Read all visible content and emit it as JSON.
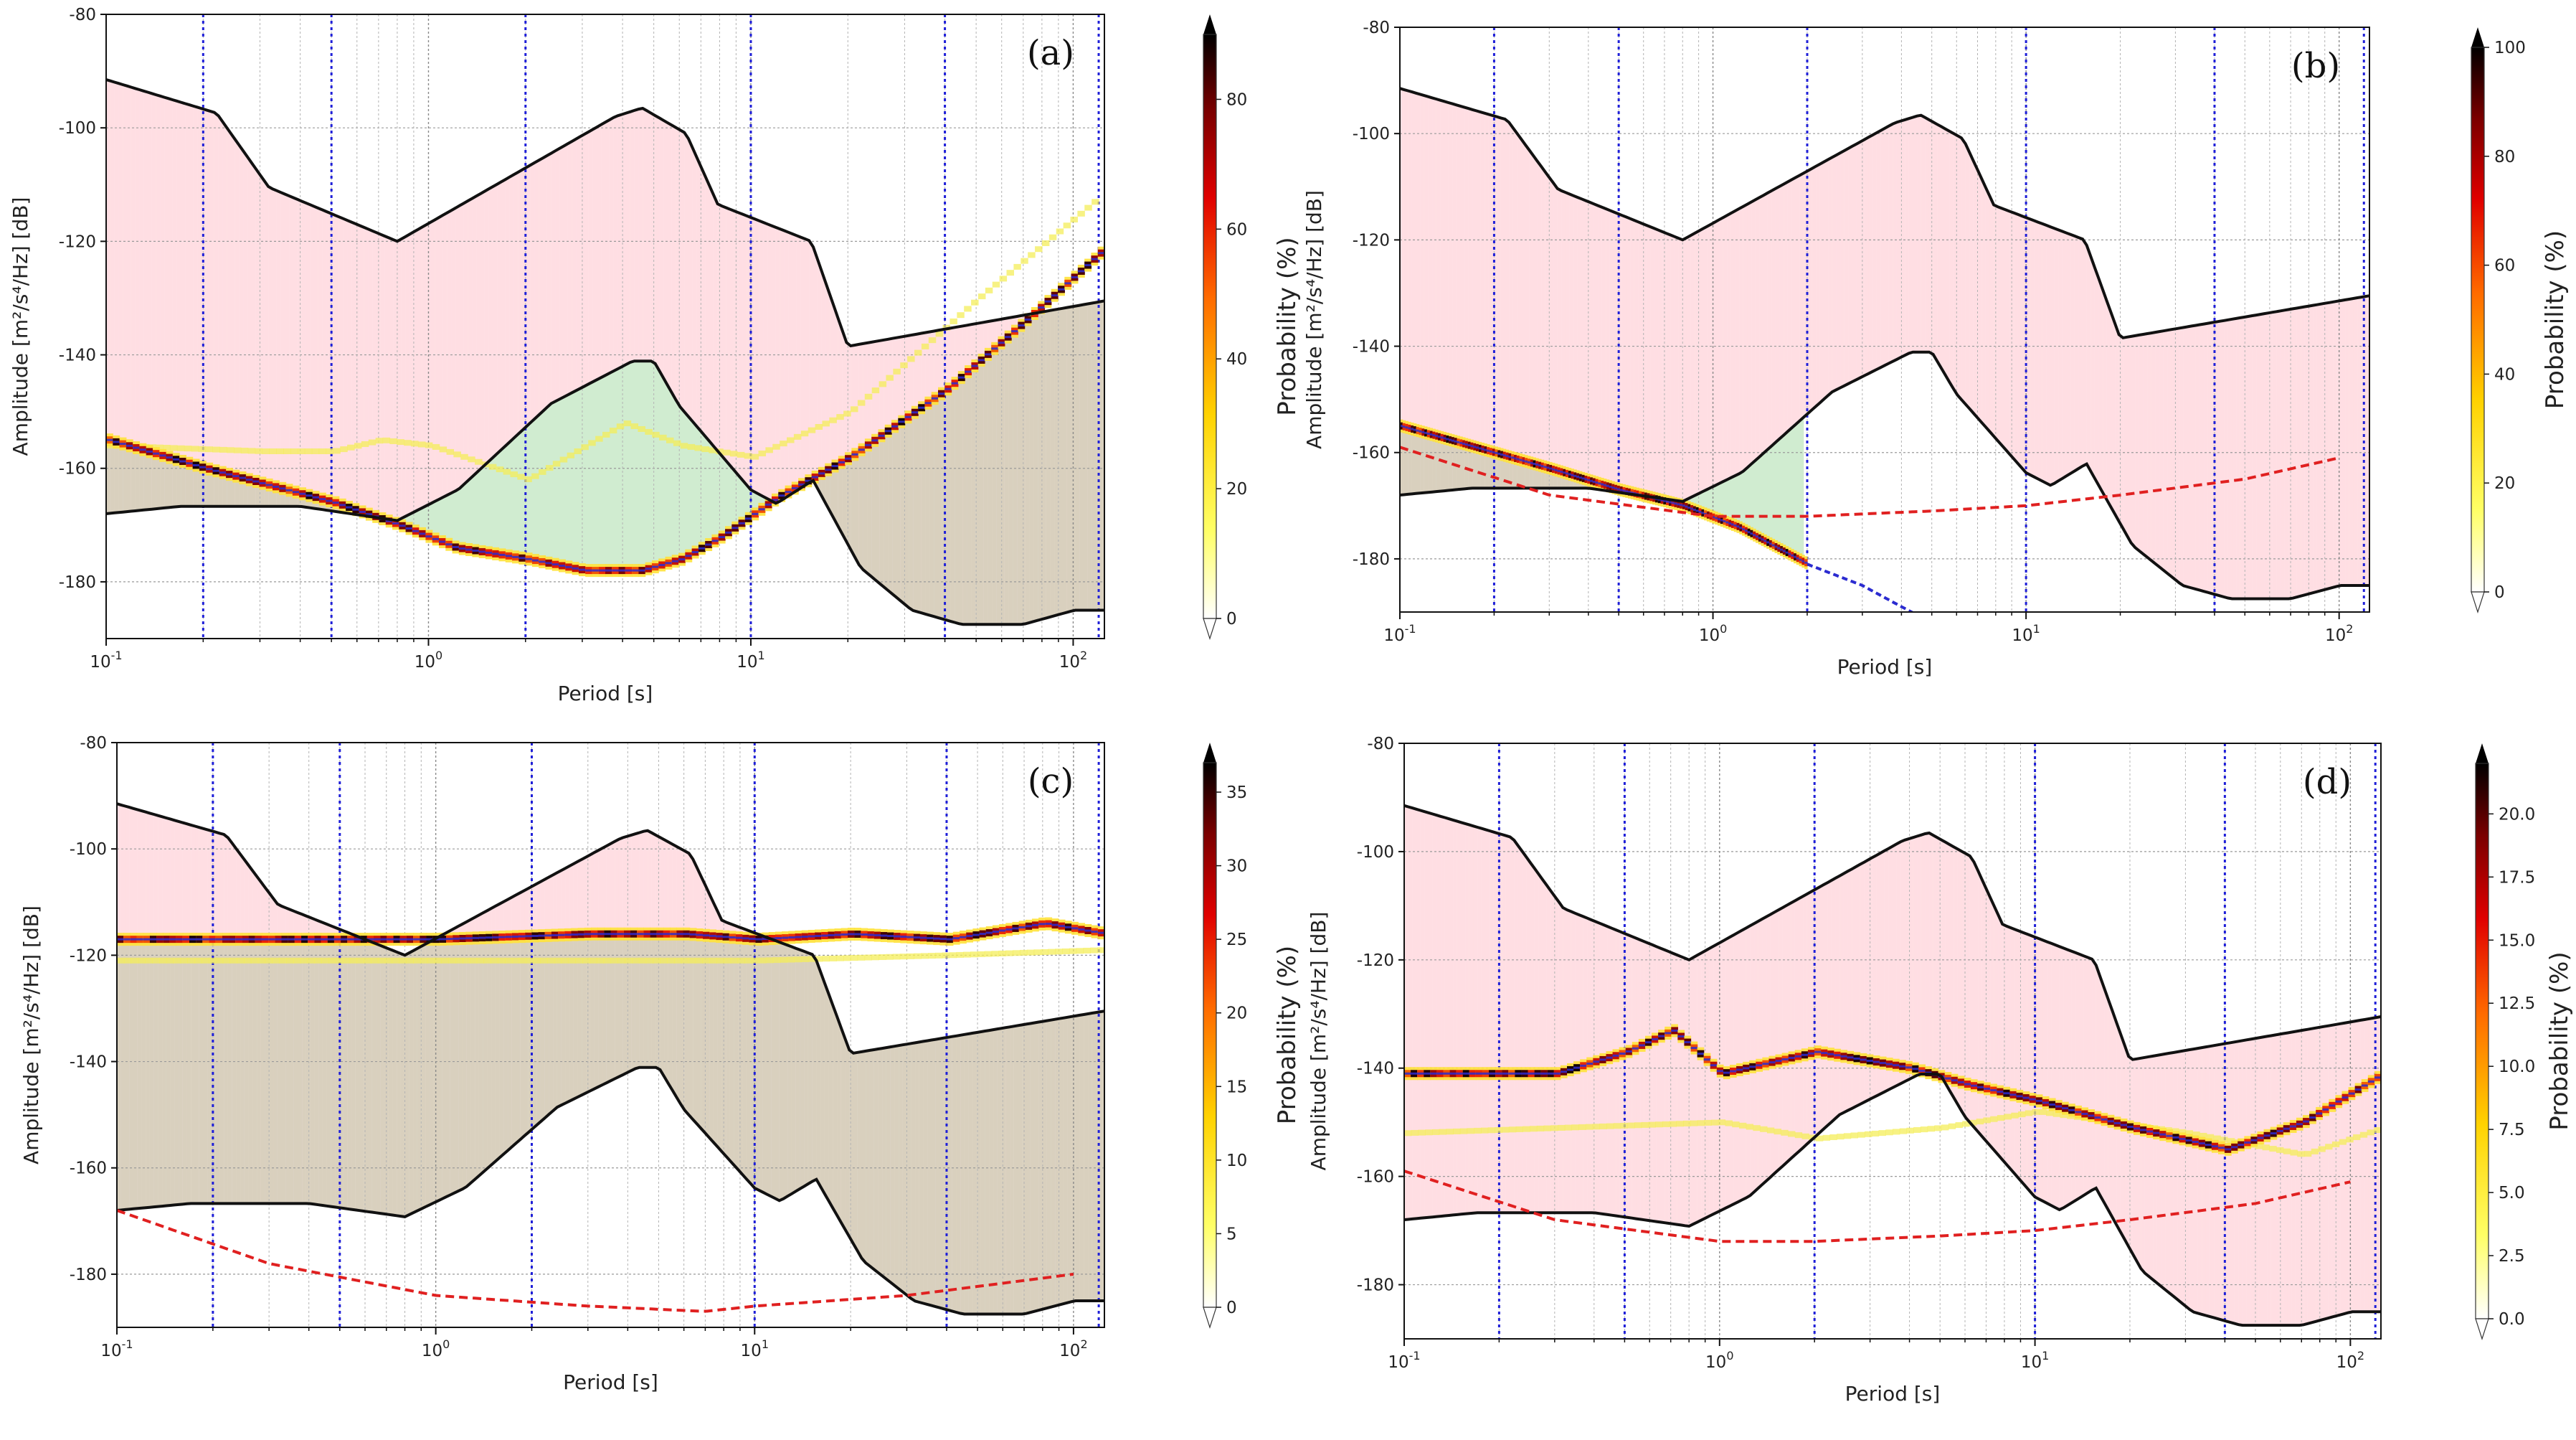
{
  "chart_data": [
    {
      "type": "heatmap",
      "panel": "(a)",
      "xlabel": "Period [s]",
      "ylabel": "Amplitude [m²/s⁴/Hz] [dB]",
      "xscale": "log",
      "xlim": [
        0.1,
        125
      ],
      "ylim": [
        -190,
        -80
      ],
      "yticks": [
        -80,
        -100,
        -120,
        -140,
        -160,
        -180
      ],
      "ytick_labels": [
        "-80",
        "-100",
        "-120",
        "-140",
        "-160",
        "-180"
      ],
      "xtick_labels": [
        {
          "base": "10",
          "exp": "-1"
        },
        {
          "base": "10",
          "exp": "0"
        },
        {
          "base": "10",
          "exp": "1"
        },
        {
          "base": "10",
          "exp": "2"
        }
      ],
      "vlines": [
        0.2,
        0.5,
        2,
        10,
        40,
        120
      ],
      "colorbar": {
        "label": "Probability (%)",
        "max": 90,
        "ticks": [
          0,
          20,
          40,
          60,
          80
        ],
        "tick_labels": [
          "0",
          "20",
          "40",
          "60",
          "80"
        ]
      },
      "ppsd_mode": [
        [
          0.1,
          -155
        ],
        [
          0.2,
          -160
        ],
        [
          0.5,
          -166
        ],
        [
          0.8,
          -170
        ],
        [
          1.2,
          -174
        ],
        [
          2,
          -176
        ],
        [
          3,
          -178
        ],
        [
          4.5,
          -178
        ],
        [
          6,
          -176
        ],
        [
          8,
          -172
        ],
        [
          12,
          -165
        ],
        [
          20,
          -158
        ],
        [
          40,
          -146
        ],
        [
          70,
          -134
        ],
        [
          125,
          -121
        ]
      ],
      "ppsd_faint": [
        [
          0.1,
          -156
        ],
        [
          0.3,
          -157
        ],
        [
          0.5,
          -157
        ],
        [
          0.7,
          -155
        ],
        [
          1,
          -156
        ],
        [
          2,
          -162
        ],
        [
          4,
          -152
        ],
        [
          6,
          -156
        ],
        [
          10,
          -158
        ],
        [
          20,
          -150
        ],
        [
          50,
          -130
        ],
        [
          120,
          -112
        ]
      ],
      "dashed_red": null,
      "dashed_blue": null,
      "fills": {
        "above": "pink",
        "between": "green",
        "below": "olive"
      }
    },
    {
      "type": "heatmap",
      "panel": "(b)",
      "xlabel": "Period [s]",
      "ylabel": "Amplitude [m²/s⁴/Hz] [dB]",
      "xscale": "log",
      "xlim": [
        0.1,
        125
      ],
      "ylim": [
        -190,
        -80
      ],
      "yticks": [
        -80,
        -100,
        -120,
        -140,
        -160,
        -180
      ],
      "ytick_labels": [
        "-80",
        "-100",
        "-120",
        "-140",
        "-160",
        "-180"
      ],
      "xtick_labels": [
        {
          "base": "10",
          "exp": "-1"
        },
        {
          "base": "10",
          "exp": "0"
        },
        {
          "base": "10",
          "exp": "1"
        },
        {
          "base": "10",
          "exp": "2"
        }
      ],
      "vlines": [
        0.2,
        0.5,
        2,
        10,
        40,
        120
      ],
      "colorbar": {
        "label": "Probability (%)",
        "max": 100,
        "ticks": [
          0,
          20,
          40,
          60,
          80,
          100
        ],
        "tick_labels": [
          "0",
          "20",
          "40",
          "60",
          "80",
          "100"
        ]
      },
      "ppsd_mode": [
        [
          0.1,
          -155
        ],
        [
          0.3,
          -163
        ],
        [
          0.5,
          -167
        ],
        [
          0.8,
          -170
        ],
        [
          1.2,
          -174
        ],
        [
          2,
          -181
        ]
      ],
      "ppsd_faint": null,
      "dashed_red": [
        [
          0.1,
          -159
        ],
        [
          0.3,
          -168
        ],
        [
          1,
          -172
        ],
        [
          2,
          -172
        ],
        [
          5,
          -171
        ],
        [
          10,
          -170
        ],
        [
          20,
          -168
        ],
        [
          50,
          -165
        ],
        [
          100,
          -161
        ]
      ],
      "dashed_blue": [
        [
          2,
          -181
        ],
        [
          3,
          -185
        ],
        [
          4,
          -189
        ],
        [
          5,
          -192
        ]
      ],
      "fills": {
        "above": "pink",
        "between": "green",
        "below": "olive"
      }
    },
    {
      "type": "heatmap",
      "panel": "(c)",
      "xlabel": "Period [s]",
      "ylabel": "Amplitude [m²/s⁴/Hz] [dB]",
      "xscale": "log",
      "xlim": [
        0.1,
        125
      ],
      "ylim": [
        -190,
        -80
      ],
      "yticks": [
        -80,
        -100,
        -120,
        -140,
        -160,
        -180
      ],
      "ytick_labels": [
        "-80",
        "-100",
        "-120",
        "-140",
        "-160",
        "-180"
      ],
      "xtick_labels": [
        {
          "base": "10",
          "exp": "-1"
        },
        {
          "base": "10",
          "exp": "0"
        },
        {
          "base": "10",
          "exp": "1"
        },
        {
          "base": "10",
          "exp": "2"
        }
      ],
      "vlines": [
        0.2,
        0.5,
        2,
        10,
        40,
        120
      ],
      "colorbar": {
        "label": "Probability (%)",
        "max": 37,
        "ticks": [
          0,
          5,
          10,
          15,
          20,
          25,
          30,
          35
        ],
        "tick_labels": [
          "0",
          "5",
          "10",
          "15",
          "20",
          "25",
          "30",
          "35"
        ]
      },
      "ppsd_mode": [
        [
          0.1,
          -117
        ],
        [
          0.5,
          -117
        ],
        [
          1,
          -117
        ],
        [
          3,
          -116
        ],
        [
          6,
          -116
        ],
        [
          10,
          -117
        ],
        [
          20,
          -116
        ],
        [
          40,
          -117
        ],
        [
          80,
          -114
        ],
        [
          125,
          -116
        ]
      ],
      "ppsd_faint": [
        [
          0.1,
          -121
        ],
        [
          1,
          -121
        ],
        [
          10,
          -121
        ],
        [
          40,
          -120
        ],
        [
          125,
          -119
        ]
      ],
      "dashed_red": [
        [
          0.1,
          -168
        ],
        [
          0.3,
          -178
        ],
        [
          1,
          -184
        ],
        [
          3,
          -186
        ],
        [
          7,
          -187
        ],
        [
          10,
          -186
        ],
        [
          30,
          -184
        ],
        [
          100,
          -180
        ]
      ],
      "dashed_blue": null,
      "fills": {
        "above": "pink",
        "between": "green",
        "below": "olive"
      }
    },
    {
      "type": "heatmap",
      "panel": "(d)",
      "xlabel": "Period [s]",
      "ylabel": "Amplitude [m²/s⁴/Hz] [dB]",
      "xscale": "log",
      "xlim": [
        0.1,
        125
      ],
      "ylim": [
        -190,
        -80
      ],
      "yticks": [
        -80,
        -100,
        -120,
        -140,
        -160,
        -180
      ],
      "ytick_labels": [
        "-80",
        "-100",
        "-120",
        "-140",
        "-160",
        "-180"
      ],
      "xtick_labels": [
        {
          "base": "10",
          "exp": "-1"
        },
        {
          "base": "10",
          "exp": "0"
        },
        {
          "base": "10",
          "exp": "1"
        },
        {
          "base": "10",
          "exp": "2"
        }
      ],
      "vlines": [
        0.2,
        0.5,
        2,
        10,
        40,
        120
      ],
      "colorbar": {
        "label": "Probability (%)",
        "max": 22,
        "ticks": [
          0,
          2.5,
          5,
          7.5,
          10,
          12.5,
          15,
          17.5,
          20
        ],
        "tick_labels": [
          "0.0",
          "2.5",
          "5.0",
          "7.5",
          "10.0",
          "12.5",
          "15.0",
          "17.5",
          "20.0"
        ]
      },
      "ppsd_mode": [
        [
          0.1,
          -141
        ],
        [
          0.3,
          -141
        ],
        [
          0.5,
          -137
        ],
        [
          0.7,
          -133
        ],
        [
          1,
          -141
        ],
        [
          2,
          -137
        ],
        [
          4,
          -140
        ],
        [
          6,
          -143
        ],
        [
          10,
          -146
        ],
        [
          20,
          -151
        ],
        [
          40,
          -155
        ],
        [
          70,
          -150
        ],
        [
          125,
          -141
        ]
      ],
      "ppsd_faint": [
        [
          0.1,
          -152
        ],
        [
          1,
          -150
        ],
        [
          2,
          -153
        ],
        [
          5,
          -151
        ],
        [
          10,
          -148
        ],
        [
          30,
          -152
        ],
        [
          70,
          -156
        ],
        [
          125,
          -151
        ]
      ],
      "dashed_red": [
        [
          0.1,
          -159
        ],
        [
          0.3,
          -168
        ],
        [
          1,
          -172
        ],
        [
          2,
          -172
        ],
        [
          5,
          -171
        ],
        [
          10,
          -170
        ],
        [
          20,
          -168
        ],
        [
          50,
          -165
        ],
        [
          100,
          -161
        ]
      ],
      "dashed_blue": null,
      "fills": {
        "above": "pink",
        "between": "green",
        "below": "pink"
      }
    }
  ],
  "reference_models": {
    "high_noise": [
      [
        0.1,
        -91.5
      ],
      [
        0.22,
        -97.4
      ],
      [
        0.32,
        -110.5
      ],
      [
        0.8,
        -120
      ],
      [
        3.8,
        -98
      ],
      [
        4.6,
        -96.5
      ],
      [
        6.3,
        -101
      ],
      [
        7.9,
        -113.5
      ],
      [
        15.4,
        -120
      ],
      [
        20,
        -138.5
      ],
      [
        125,
        -130.5
      ]
    ],
    "low_noise": [
      [
        0.1,
        -168
      ],
      [
        0.17,
        -166.7
      ],
      [
        0.4,
        -166.7
      ],
      [
        0.8,
        -169.2
      ],
      [
        1.24,
        -163.7
      ],
      [
        2.4,
        -148.6
      ],
      [
        4.3,
        -141.1
      ],
      [
        5,
        -141.1
      ],
      [
        6,
        -149
      ],
      [
        10,
        -163.8
      ],
      [
        12,
        -166.2
      ],
      [
        15.6,
        -162.1
      ],
      [
        21.9,
        -177.5
      ],
      [
        31.6,
        -185
      ],
      [
        45,
        -187.5
      ],
      [
        70,
        -187.5
      ],
      [
        101,
        -185
      ],
      [
        125,
        -185
      ]
    ]
  }
}
